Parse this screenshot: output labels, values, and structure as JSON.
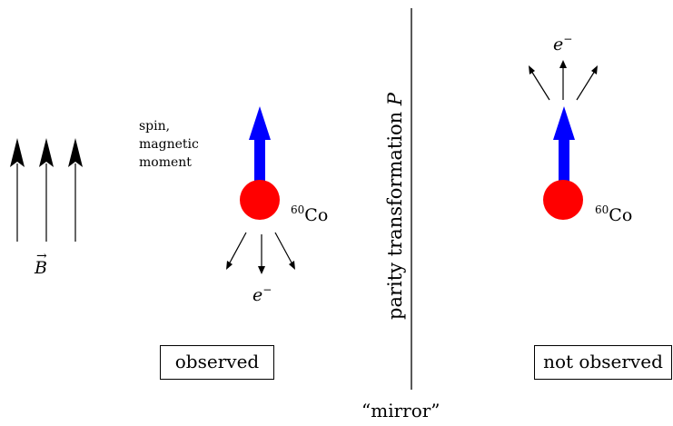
{
  "field": {
    "label": "B"
  },
  "left": {
    "spin_label_lines": [
      "spin,",
      "magnetic",
      "moment"
    ],
    "nucleus_mass": "60",
    "nucleus_symbol": "Co",
    "electron": "e",
    "electron_charge": "−",
    "caption": "observed"
  },
  "mirror": {
    "label": "parity transformation",
    "symbol": "P",
    "caption": "“mirror”"
  },
  "right": {
    "nucleus_mass": "60",
    "nucleus_symbol": "Co",
    "electron": "e",
    "electron_charge": "−",
    "caption": "not observed"
  },
  "colors": {
    "nucleus": "#ff0000",
    "spin": "#0000ff",
    "lines": "#000000"
  }
}
